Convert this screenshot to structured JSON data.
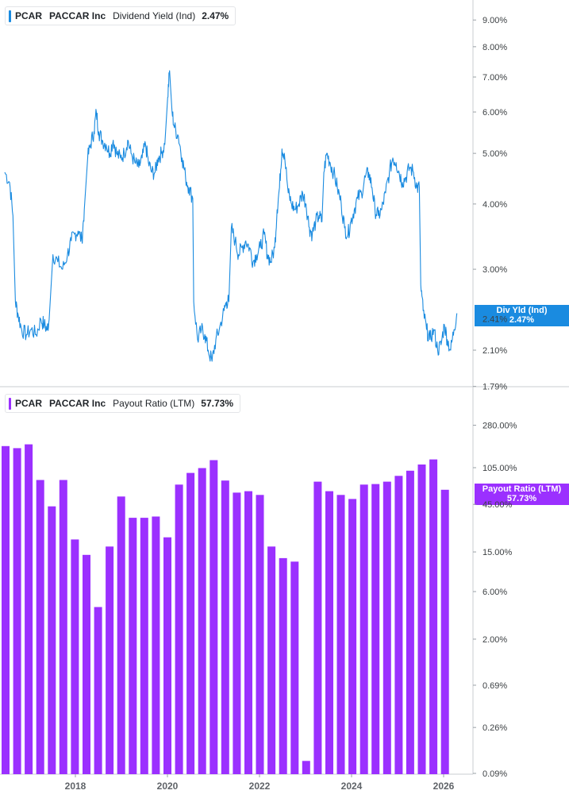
{
  "chart_data": [
    {
      "type": "line",
      "ticker": "PCAR",
      "company": "PACCAR Inc",
      "metric": "Dividend Yield (Ind)",
      "latest_value": "2.47%",
      "tag_label": "Div Yld (Ind)",
      "tag_value": "2.47%",
      "color": "#1a8be0",
      "y_scale": "log",
      "y_ticks": [
        "9.00%",
        "8.00%",
        "7.00%",
        "6.00%",
        "5.00%",
        "4.00%",
        "3.00%",
        "2.10%",
        "1.79%"
      ],
      "y_hidden_tick": "2.41%",
      "x_range": [
        2016.8,
        2026.25
      ],
      "points": [
        [
          2016.8,
          4.6
        ],
        [
          2016.9,
          4.4
        ],
        [
          2016.97,
          3.8
        ],
        [
          2017.02,
          2.6
        ],
        [
          2017.08,
          2.45
        ],
        [
          2017.15,
          2.3
        ],
        [
          2017.25,
          2.25
        ],
        [
          2017.35,
          2.3
        ],
        [
          2017.45,
          2.25
        ],
        [
          2017.55,
          2.4
        ],
        [
          2017.62,
          2.35
        ],
        [
          2017.68,
          2.3
        ],
        [
          2017.72,
          2.4
        ],
        [
          2017.8,
          3.2
        ],
        [
          2017.9,
          3.1
        ],
        [
          2018.0,
          3.0
        ],
        [
          2018.1,
          3.2
        ],
        [
          2018.18,
          3.4
        ],
        [
          2018.25,
          3.5
        ],
        [
          2018.32,
          3.55
        ],
        [
          2018.4,
          3.4
        ],
        [
          2018.45,
          3.9
        ],
        [
          2018.52,
          4.9
        ],
        [
          2018.58,
          5.2
        ],
        [
          2018.65,
          5.5
        ],
        [
          2018.7,
          6.0
        ],
        [
          2018.75,
          5.5
        ],
        [
          2018.82,
          5.3
        ],
        [
          2018.9,
          5.2
        ],
        [
          2018.98,
          5.0
        ],
        [
          2019.05,
          5.3
        ],
        [
          2019.12,
          5.0
        ],
        [
          2019.2,
          4.9
        ],
        [
          2019.28,
          5.0
        ],
        [
          2019.35,
          5.3
        ],
        [
          2019.42,
          5.0
        ],
        [
          2019.5,
          4.8
        ],
        [
          2019.58,
          4.7
        ],
        [
          2019.65,
          4.9
        ],
        [
          2019.72,
          5.2
        ],
        [
          2019.78,
          4.8
        ],
        [
          2019.85,
          4.6
        ],
        [
          2019.92,
          4.6
        ],
        [
          2019.98,
          4.9
        ],
        [
          2020.05,
          5.0
        ],
        [
          2020.12,
          5.2
        ],
        [
          2020.18,
          6.4
        ],
        [
          2020.22,
          7.2
        ],
        [
          2020.27,
          6.0
        ],
        [
          2020.32,
          5.6
        ],
        [
          2020.4,
          5.4
        ],
        [
          2020.48,
          4.9
        ],
        [
          2020.55,
          4.5
        ],
        [
          2020.62,
          4.3
        ],
        [
          2020.7,
          4.1
        ],
        [
          2020.72,
          2.6
        ],
        [
          2020.8,
          2.2
        ],
        [
          2020.88,
          2.3
        ],
        [
          2020.95,
          2.25
        ],
        [
          2021.02,
          2.1
        ],
        [
          2021.1,
          2.0
        ],
        [
          2021.18,
          2.2
        ],
        [
          2021.25,
          2.3
        ],
        [
          2021.35,
          2.5
        ],
        [
          2021.4,
          2.6
        ],
        [
          2021.45,
          2.6
        ],
        [
          2021.5,
          3.6
        ],
        [
          2021.58,
          3.4
        ],
        [
          2021.65,
          3.2
        ],
        [
          2021.72,
          3.3
        ],
        [
          2021.8,
          3.4
        ],
        [
          2021.88,
          3.3
        ],
        [
          2021.95,
          3.1
        ],
        [
          2022.02,
          3.2
        ],
        [
          2022.1,
          3.3
        ],
        [
          2022.18,
          3.5
        ],
        [
          2022.25,
          3.2
        ],
        [
          2022.32,
          3.1
        ],
        [
          2022.4,
          3.3
        ],
        [
          2022.45,
          3.9
        ],
        [
          2022.5,
          4.3
        ],
        [
          2022.55,
          5.1
        ],
        [
          2022.6,
          5.0
        ],
        [
          2022.68,
          4.2
        ],
        [
          2022.75,
          4.0
        ],
        [
          2022.82,
          3.9
        ],
        [
          2022.9,
          4.0
        ],
        [
          2022.98,
          4.2
        ],
        [
          2023.05,
          4.0
        ],
        [
          2023.12,
          3.6
        ],
        [
          2023.18,
          3.5
        ],
        [
          2023.25,
          3.7
        ],
        [
          2023.32,
          3.8
        ],
        [
          2023.38,
          3.7
        ],
        [
          2023.42,
          4.6
        ],
        [
          2023.48,
          5.0
        ],
        [
          2023.55,
          4.8
        ],
        [
          2023.62,
          4.6
        ],
        [
          2023.7,
          4.3
        ],
        [
          2023.78,
          4.0
        ],
        [
          2023.85,
          3.6
        ],
        [
          2023.92,
          3.5
        ],
        [
          2023.98,
          3.7
        ],
        [
          2024.05,
          3.9
        ],
        [
          2024.12,
          4.1
        ],
        [
          2024.2,
          4.2
        ],
        [
          2024.28,
          4.5
        ],
        [
          2024.35,
          4.6
        ],
        [
          2024.42,
          4.3
        ],
        [
          2024.48,
          3.9
        ],
        [
          2024.55,
          3.8
        ],
        [
          2024.62,
          3.9
        ],
        [
          2024.7,
          4.2
        ],
        [
          2024.78,
          4.6
        ],
        [
          2024.85,
          4.9
        ],
        [
          2024.92,
          4.8
        ],
        [
          2024.98,
          4.6
        ],
        [
          2025.05,
          4.4
        ],
        [
          2025.12,
          4.5
        ],
        [
          2025.2,
          4.7
        ],
        [
          2025.28,
          4.6
        ],
        [
          2025.35,
          4.3
        ],
        [
          2025.4,
          4.3
        ],
        [
          2025.43,
          2.8
        ],
        [
          2025.48,
          2.5
        ],
        [
          2025.55,
          2.3
        ],
        [
          2025.62,
          2.2
        ],
        [
          2025.7,
          2.3
        ],
        [
          2025.78,
          2.1
        ],
        [
          2025.85,
          2.15
        ],
        [
          2025.92,
          2.35
        ],
        [
          2025.98,
          2.2
        ],
        [
          2026.05,
          2.1
        ],
        [
          2026.12,
          2.3
        ],
        [
          2026.18,
          2.47
        ]
      ]
    },
    {
      "type": "bar",
      "ticker": "PCAR",
      "company": "PACCAR Inc",
      "metric": "Payout Ratio (LTM)",
      "latest_value": "57.73%",
      "tag_label": "Payout Ratio (LTM)",
      "tag_value": "57.73%",
      "color": "#9b30ff",
      "y_scale": "log",
      "y_ticks": [
        "280.00%",
        "105.00%",
        "45.00%",
        "15.00%",
        "6.00%",
        "2.00%",
        "0.69%",
        "0.26%",
        "0.09%"
      ],
      "x_ticks": [
        "2018",
        "2020",
        "2022",
        "2024",
        "2026"
      ],
      "values": [
        173,
        165,
        180,
        79,
        43,
        79,
        20,
        14,
        4.2,
        17,
        54,
        33,
        33,
        34,
        21,
        71,
        93,
        104,
        125,
        78,
        59,
        61,
        56,
        17,
        13,
        12,
        0.12,
        76,
        61,
        56,
        51,
        71,
        72,
        76,
        87,
        98,
        113,
        127,
        63
      ]
    }
  ],
  "x_axis_labels": [
    "2018",
    "2020",
    "2022",
    "2024",
    "2026"
  ]
}
